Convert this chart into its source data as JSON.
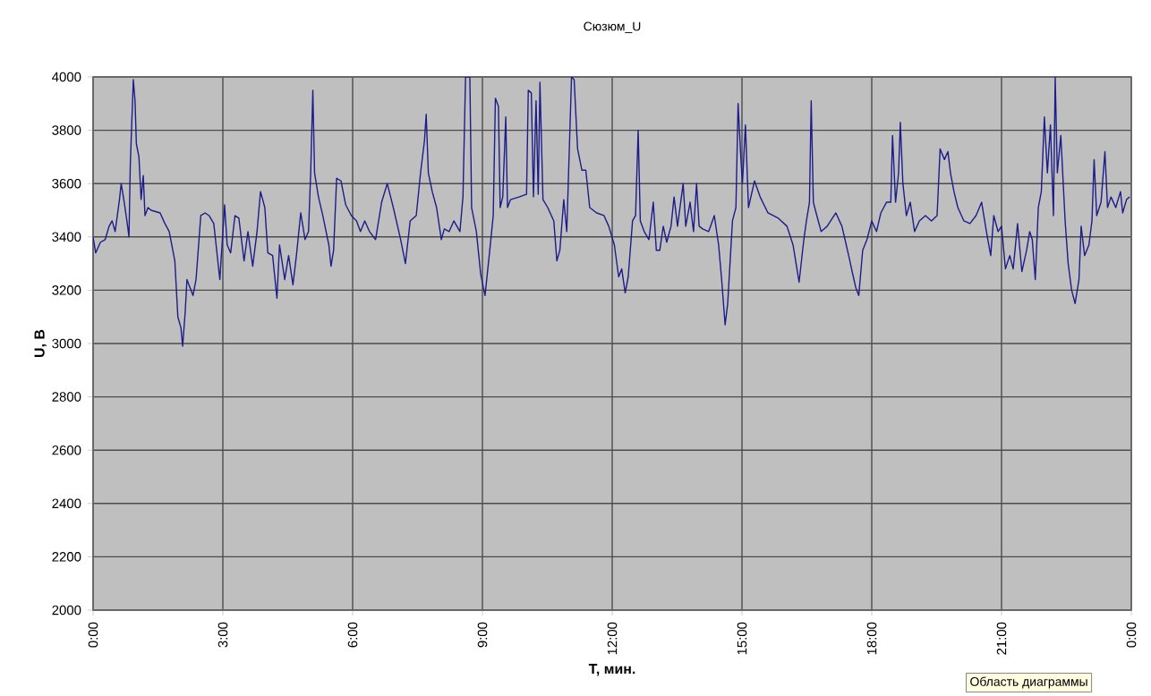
{
  "chart_data": {
    "type": "line",
    "title": "Сюзюм_U",
    "xlabel": "Т, мин.",
    "ylabel": "U, В",
    "xlim": [
      0,
      24
    ],
    "ylim": [
      2000,
      4000
    ],
    "xticks": [
      {
        "value": 0,
        "label": "0:00"
      },
      {
        "value": 3,
        "label": "3:00"
      },
      {
        "value": 6,
        "label": "6:00"
      },
      {
        "value": 9,
        "label": "9:00"
      },
      {
        "value": 12,
        "label": "12:00"
      },
      {
        "value": 15,
        "label": "15:00"
      },
      {
        "value": 18,
        "label": "18:00"
      },
      {
        "value": 21,
        "label": "21:00"
      },
      {
        "value": 24,
        "label": "0:00"
      }
    ],
    "yticks": [
      2000,
      2200,
      2400,
      2600,
      2800,
      3000,
      3200,
      3400,
      3600,
      3800,
      4000
    ],
    "grid": true,
    "annotations": [
      "Область диаграммы"
    ],
    "x": [
      0,
      0.06,
      0.17,
      0.28,
      0.37,
      0.44,
      0.51,
      0.61,
      0.65,
      0.72,
      0.79,
      0.83,
      0.86,
      0.93,
      0.97,
      1.0,
      1.06,
      1.11,
      1.16,
      1.2,
      1.27,
      1.34,
      1.55,
      1.66,
      1.76,
      1.89,
      1.96,
      2.03,
      2.07,
      2.13,
      2.17,
      2.24,
      2.31,
      2.38,
      2.49,
      2.59,
      2.68,
      2.79,
      2.93,
      3.04,
      3.1,
      3.18,
      3.28,
      3.37,
      3.49,
      3.58,
      3.69,
      3.79,
      3.87,
      3.97,
      4.04,
      4.15,
      4.25,
      4.31,
      4.43,
      4.52,
      4.62,
      4.7,
      4.8,
      4.9,
      4.98,
      5.03,
      5.08,
      5.12,
      5.21,
      5.31,
      5.45,
      5.5,
      5.56,
      5.63,
      5.73,
      5.84,
      5.97,
      6.09,
      6.18,
      6.28,
      6.39,
      6.53,
      6.67,
      6.8,
      6.94,
      7.11,
      7.22,
      7.33,
      7.47,
      7.57,
      7.66,
      7.7,
      7.75,
      7.84,
      7.94,
      8.05,
      8.12,
      8.23,
      8.34,
      8.48,
      8.55,
      8.61,
      8.71,
      8.75,
      8.86,
      8.96,
      9.06,
      9.17,
      9.25,
      9.3,
      9.37,
      9.41,
      9.47,
      9.54,
      9.58,
      9.65,
      9.85,
      10.02,
      10.06,
      10.13,
      10.18,
      10.24,
      10.29,
      10.33,
      10.4,
      10.51,
      10.65,
      10.72,
      10.79,
      10.88,
      10.95,
      11.06,
      11.12,
      11.2,
      11.3,
      11.39,
      11.48,
      11.64,
      11.81,
      11.92,
      12.05,
      12.15,
      12.22,
      12.3,
      12.37,
      12.47,
      12.54,
      12.6,
      12.65,
      12.74,
      12.85,
      12.95,
      13.02,
      13.1,
      13.18,
      13.26,
      13.36,
      13.43,
      13.51,
      13.64,
      13.7,
      13.8,
      13.88,
      13.95,
      14.01,
      14.09,
      14.23,
      14.36,
      14.46,
      14.53,
      14.61,
      14.67,
      14.78,
      14.86,
      14.91,
      14.97,
      15.01,
      15.08,
      15.15,
      15.29,
      15.42,
      15.6,
      15.84,
      16.04,
      16.18,
      16.32,
      16.43,
      16.49,
      16.56,
      16.6,
      16.65,
      16.73,
      16.83,
      16.97,
      17.17,
      17.31,
      17.41,
      17.48,
      17.56,
      17.63,
      17.7,
      17.79,
      17.89,
      18.0,
      18.11,
      18.21,
      18.34,
      18.44,
      18.48,
      18.55,
      18.62,
      18.66,
      18.72,
      18.8,
      18.89,
      18.99,
      19.1,
      19.24,
      19.38,
      19.51,
      19.58,
      19.68,
      19.76,
      19.82,
      19.9,
      19.99,
      20.13,
      20.27,
      20.41,
      20.54,
      20.65,
      20.75,
      20.82,
      20.92,
      21.0,
      21.09,
      21.19,
      21.27,
      21.37,
      21.47,
      21.58,
      21.65,
      21.71,
      21.78,
      21.85,
      21.92,
      21.99,
      22.06,
      22.13,
      22.2,
      22.24,
      22.29,
      22.37,
      22.47,
      22.54,
      22.62,
      22.7,
      22.79,
      22.84,
      22.92,
      23.02,
      23.09,
      23.14,
      23.2,
      23.3,
      23.39,
      23.45,
      23.53,
      23.64,
      23.75,
      23.8,
      23.89,
      23.96
    ],
    "series": [
      {
        "color": "#1c1c8a",
        "values": [
          3400,
          3340,
          3380,
          3390,
          3440,
          3460,
          3420,
          3540,
          3600,
          3530,
          3450,
          3400,
          3670,
          3990,
          3910,
          3750,
          3700,
          3540,
          3630,
          3480,
          3510,
          3500,
          3490,
          3450,
          3420,
          3310,
          3100,
          3060,
          2990,
          3120,
          3240,
          3210,
          3180,
          3240,
          3480,
          3490,
          3480,
          3450,
          3240,
          3520,
          3370,
          3340,
          3480,
          3470,
          3310,
          3420,
          3290,
          3420,
          3570,
          3510,
          3340,
          3330,
          3170,
          3370,
          3240,
          3330,
          3220,
          3330,
          3490,
          3390,
          3420,
          3640,
          3950,
          3640,
          3550,
          3480,
          3370,
          3290,
          3350,
          3620,
          3610,
          3520,
          3480,
          3460,
          3420,
          3460,
          3420,
          3390,
          3530,
          3600,
          3510,
          3390,
          3300,
          3460,
          3480,
          3640,
          3760,
          3860,
          3640,
          3570,
          3510,
          3390,
          3430,
          3420,
          3460,
          3420,
          3550,
          4000,
          4000,
          3510,
          3420,
          3260,
          3180,
          3350,
          3480,
          3920,
          3890,
          3510,
          3550,
          3850,
          3510,
          3540,
          3550,
          3560,
          3950,
          3940,
          3550,
          3910,
          3560,
          3980,
          3540,
          3510,
          3460,
          3310,
          3350,
          3540,
          3420,
          4000,
          3990,
          3730,
          3650,
          3650,
          3510,
          3490,
          3480,
          3440,
          3370,
          3250,
          3280,
          3190,
          3250,
          3460,
          3480,
          3800,
          3460,
          3420,
          3390,
          3530,
          3350,
          3350,
          3440,
          3380,
          3440,
          3550,
          3440,
          3600,
          3440,
          3530,
          3420,
          3600,
          3440,
          3430,
          3420,
          3480,
          3370,
          3240,
          3070,
          3150,
          3460,
          3510,
          3900,
          3710,
          3600,
          3820,
          3510,
          3610,
          3550,
          3490,
          3470,
          3440,
          3370,
          3230,
          3390,
          3460,
          3530,
          3910,
          3530,
          3480,
          3420,
          3440,
          3490,
          3440,
          3370,
          3320,
          3260,
          3210,
          3180,
          3350,
          3390,
          3460,
          3420,
          3490,
          3530,
          3530,
          3780,
          3530,
          3640,
          3830,
          3600,
          3480,
          3530,
          3420,
          3460,
          3480,
          3460,
          3480,
          3730,
          3690,
          3720,
          3640,
          3570,
          3510,
          3460,
          3450,
          3480,
          3530,
          3420,
          3330,
          3480,
          3420,
          3440,
          3280,
          3330,
          3280,
          3450,
          3270,
          3350,
          3420,
          3390,
          3240,
          3510,
          3570,
          3850,
          3640,
          3820,
          3480,
          4000,
          3640,
          3780,
          3460,
          3300,
          3200,
          3150,
          3240,
          3440,
          3330,
          3370,
          3460,
          3690,
          3480,
          3530,
          3720,
          3510,
          3550,
          3510,
          3570,
          3490,
          3540,
          3550
        ]
      }
    ]
  }
}
